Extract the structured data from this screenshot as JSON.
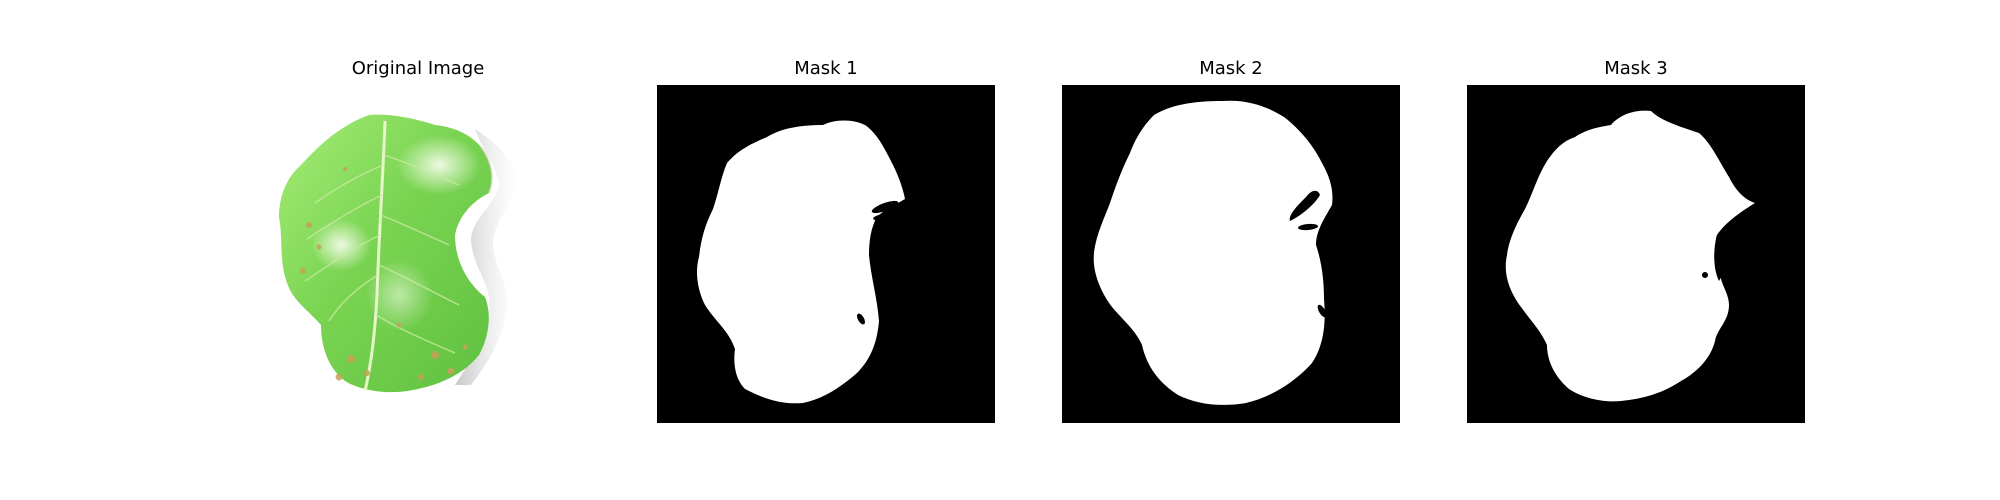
{
  "figure": {
    "panels": [
      {
        "id": "original",
        "title": "Original Image"
      },
      {
        "id": "mask1",
        "title": "Mask 1"
      },
      {
        "id": "mask2",
        "title": "Mask 2"
      },
      {
        "id": "mask3",
        "title": "Mask 3"
      }
    ]
  },
  "colors": {
    "background": "#ffffff",
    "mask_background": "#000000",
    "mask_foreground": "#ffffff",
    "leaf_light": "#9be86a",
    "leaf_mid": "#74d04a",
    "leaf_dark": "#4fb534",
    "leaf_spots": "#c9a257"
  }
}
